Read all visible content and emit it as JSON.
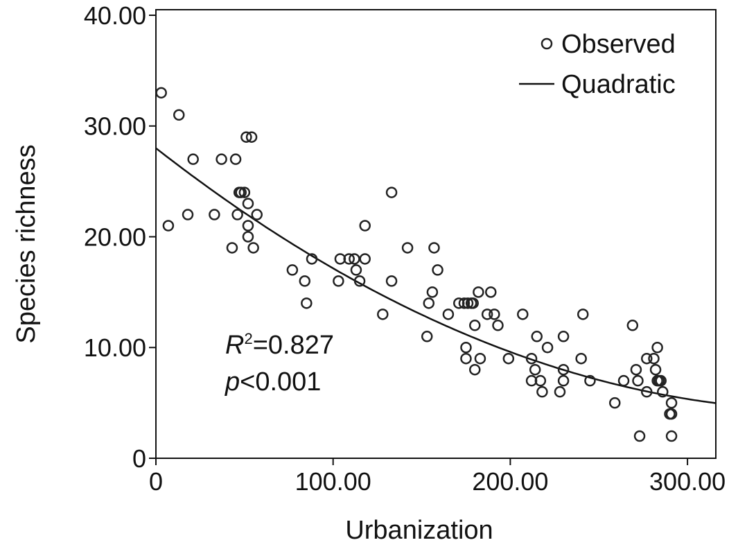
{
  "chart_data": {
    "type": "scatter",
    "xlabel": "Urbanization",
    "ylabel": "Species richness",
    "xlim": [
      0,
      316
    ],
    "ylim": [
      0,
      40.5
    ],
    "xticks": [
      0,
      100,
      200,
      300
    ],
    "xtick_labels": [
      "0",
      "100.00",
      "200.00",
      "300.00"
    ],
    "yticks": [
      0,
      10,
      20,
      30,
      40
    ],
    "ytick_labels": [
      "0",
      "10.00",
      "20.00",
      "30.00",
      "40.00"
    ],
    "grid": false,
    "legend": {
      "placement": "top-right",
      "entries": [
        {
          "label": "Observed",
          "marker": "circle"
        },
        {
          "label": "Quadratic",
          "marker": "line"
        }
      ]
    },
    "annotations": {
      "r2_label": "R",
      "r2_sup": "2",
      "r2_value": "=0.827",
      "p_label": "p",
      "p_value": "<0.001"
    },
    "series": [
      {
        "name": "Observed",
        "type": "scatter",
        "points": [
          [
            3,
            33
          ],
          [
            7,
            21
          ],
          [
            13,
            31
          ],
          [
            18,
            22
          ],
          [
            21,
            27
          ],
          [
            33,
            22
          ],
          [
            37,
            27
          ],
          [
            43,
            19
          ],
          [
            45,
            27
          ],
          [
            46,
            22
          ],
          [
            47,
            24
          ],
          [
            48,
            24
          ],
          [
            50,
            24
          ],
          [
            51,
            29
          ],
          [
            52,
            20
          ],
          [
            52,
            21
          ],
          [
            52,
            23
          ],
          [
            54,
            29
          ],
          [
            55,
            19
          ],
          [
            57,
            22
          ],
          [
            77,
            17
          ],
          [
            84,
            16
          ],
          [
            85,
            14
          ],
          [
            88,
            18
          ],
          [
            103,
            16
          ],
          [
            104,
            18
          ],
          [
            109,
            18
          ],
          [
            112,
            18
          ],
          [
            113,
            17
          ],
          [
            115,
            16
          ],
          [
            118,
            18
          ],
          [
            118,
            21
          ],
          [
            128,
            13
          ],
          [
            133,
            24
          ],
          [
            133,
            16
          ],
          [
            142,
            19
          ],
          [
            153,
            11
          ],
          [
            154,
            14
          ],
          [
            156,
            15
          ],
          [
            157,
            19
          ],
          [
            159,
            17
          ],
          [
            165,
            13
          ],
          [
            171,
            14
          ],
          [
            174,
            14
          ],
          [
            175,
            10
          ],
          [
            175,
            9
          ],
          [
            176,
            14
          ],
          [
            178,
            14
          ],
          [
            179,
            14
          ],
          [
            180,
            12
          ],
          [
            180,
            8
          ],
          [
            182,
            15
          ],
          [
            183,
            9
          ],
          [
            187,
            13
          ],
          [
            189,
            15
          ],
          [
            191,
            13
          ],
          [
            193,
            12
          ],
          [
            199,
            9
          ],
          [
            207,
            13
          ],
          [
            212,
            9
          ],
          [
            212,
            7
          ],
          [
            214,
            8
          ],
          [
            215,
            11
          ],
          [
            217,
            7
          ],
          [
            218,
            6
          ],
          [
            221,
            10
          ],
          [
            228,
            6
          ],
          [
            230,
            7
          ],
          [
            230,
            8
          ],
          [
            230,
            11
          ],
          [
            240,
            9
          ],
          [
            241,
            13
          ],
          [
            245,
            7
          ],
          [
            259,
            5
          ],
          [
            264,
            7
          ],
          [
            269,
            12
          ],
          [
            271,
            8
          ],
          [
            272,
            7
          ],
          [
            273,
            2
          ],
          [
            277,
            9
          ],
          [
            277,
            6
          ],
          [
            281,
            9
          ],
          [
            282,
            8
          ],
          [
            283,
            10
          ],
          [
            283,
            7
          ],
          [
            284,
            7
          ],
          [
            285,
            7
          ],
          [
            286,
            6
          ],
          [
            290,
            4
          ],
          [
            291,
            5
          ],
          [
            291,
            4
          ],
          [
            291,
            2
          ]
        ]
      },
      {
        "name": "Quadratic",
        "type": "line",
        "coefficients": {
          "a": 28.0,
          "b": -0.125,
          "c": 0.000165
        }
      }
    ]
  }
}
